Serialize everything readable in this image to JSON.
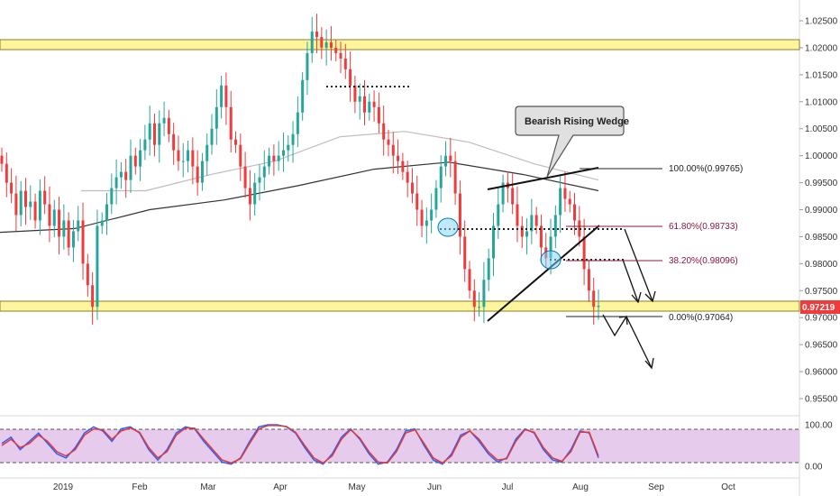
{
  "chart_data": [
    {
      "type": "candlestick",
      "title": "",
      "y_axis_ticks": [
        "1.02500",
        "1.02000",
        "1.01500",
        "1.01000",
        "1.00500",
        "1.00000",
        "0.99500",
        "0.99000",
        "0.98500",
        "0.98000",
        "0.97500",
        "0.97000",
        "0.96500",
        "0.96000",
        "0.95500"
      ],
      "ylim": [
        0.952,
        1.028
      ],
      "x_axis_labels": [
        "2019",
        "Feb",
        "Mar",
        "Apr",
        "May",
        "Jun",
        "Jul",
        "Aug",
        "Sep",
        "Oct"
      ],
      "current_price": "0.97219",
      "current_price_color": "#ef3b3b",
      "up_color": "#26a69a",
      "down_color": "#ef3b3b",
      "candle_body_color": "#222222",
      "support_zone": {
        "low": 0.9706,
        "high": 0.9733,
        "color": "#fff59d"
      },
      "resistance_zone": {
        "low": 1.0198,
        "high": 1.0222,
        "color": "#fff59d"
      },
      "close_series": [
        0.9985,
        0.995,
        0.993,
        0.989,
        0.9935,
        0.9905,
        0.9915,
        0.988,
        0.9935,
        0.991,
        0.987,
        0.99,
        0.985,
        0.988,
        0.983,
        0.986,
        0.988,
        0.98,
        0.976,
        0.972,
        0.987,
        0.988,
        0.991,
        0.994,
        0.996,
        0.997,
        0.9955,
        1.0,
        0.998,
        1.001,
        1.003,
        1.006,
        1.002,
        1.006,
        1.007,
        1.004,
        1.001,
        0.999,
        0.999,
        1.001,
        0.998,
        0.995,
        0.999,
        1.002,
        1.005,
        1.009,
        1.013,
        1.009,
        1.003,
        1.002,
        0.998,
        0.994,
        0.991,
        0.995,
        0.996,
        0.998,
        1.0,
        0.999,
        1.0,
        1.001,
        1.002,
        1.004,
        1.008,
        1.014,
        1.019,
        1.023,
        1.022,
        1.02,
        1.021,
        1.02,
        1.019,
        1.018,
        1.016,
        1.013,
        1.01,
        1.011,
        1.008,
        1.01,
        1.009,
        1.006,
        1.003,
        1.002,
        1.0,
        0.999,
        0.997,
        0.995,
        0.993,
        0.99,
        0.987,
        0.988,
        0.99,
        0.994,
        0.998,
        1.0,
        0.999,
        0.993,
        0.985,
        0.979,
        0.975,
        0.972,
        0.972,
        0.977,
        0.981,
        0.987,
        0.991,
        0.995,
        0.994,
        0.991,
        0.987,
        0.985,
        0.986,
        0.989,
        0.987,
        0.983,
        0.981,
        0.985,
        0.989,
        0.994,
        0.992,
        0.991,
        0.988,
        0.985,
        0.979,
        0.975,
        0.972,
        0.9722
      ],
      "moving_averages": [
        {
          "color": "#bdbdbd",
          "values": [
            0.9935,
            0.9935,
            0.9965,
            0.999,
            1.0035,
            1.0045,
            1.0025,
            0.9985,
            0.9955
          ]
        },
        {
          "color": "#333333",
          "values": [
            0.9858,
            0.9865,
            0.99,
            0.9918,
            0.9945,
            0.9975,
            0.9988,
            0.9965,
            0.9935
          ]
        }
      ],
      "fibonacci": [
        {
          "label": "100.00%(0.99765)",
          "price": 0.99765,
          "color": "#222222"
        },
        {
          "label": "61.80%(0.98733)",
          "price": 0.98733,
          "color": "#8b1a3a"
        },
        {
          "label": "38.20%(0.98096)",
          "price": 0.98096,
          "color": "#8b1a3a"
        },
        {
          "label": "0.00%(0.97064)",
          "price": 0.97064,
          "color": "#222222"
        }
      ],
      "annotation": {
        "text": "Bearish Rising Wedge"
      }
    },
    {
      "type": "line",
      "title": "",
      "indicator_ticks": [
        "100.00",
        "0.00"
      ],
      "ylim": [
        0,
        100
      ],
      "levels": [
        80,
        20
      ],
      "series": [
        {
          "color": "#2962ff",
          "values": [
            55,
            70,
            40,
            60,
            80,
            55,
            30,
            20,
            45,
            80,
            95,
            85,
            60,
            90,
            95,
            80,
            40,
            15,
            40,
            80,
            95,
            90,
            60,
            35,
            10,
            5,
            20,
            60,
            95,
            100,
            100,
            95,
            80,
            45,
            15,
            5,
            30,
            70,
            90,
            65,
            30,
            5,
            10,
            40,
            85,
            90,
            50,
            15,
            5,
            30,
            75,
            85,
            60,
            30,
            10,
            20,
            65,
            90,
            80,
            40,
            15,
            10,
            40,
            85,
            80,
            20
          ]
        },
        {
          "color": "#e53935",
          "values": [
            50,
            65,
            45,
            55,
            75,
            60,
            35,
            25,
            40,
            75,
            90,
            88,
            65,
            85,
            92,
            82,
            45,
            20,
            35,
            75,
            92,
            92,
            65,
            40,
            15,
            8,
            18,
            55,
            90,
            98,
            98,
            96,
            82,
            50,
            20,
            8,
            25,
            65,
            88,
            68,
            35,
            10,
            8,
            35,
            80,
            88,
            55,
            20,
            8,
            25,
            70,
            85,
            65,
            35,
            15,
            18,
            60,
            88,
            82,
            45,
            20,
            12,
            35,
            82,
            82,
            25
          ]
        }
      ]
    }
  ]
}
